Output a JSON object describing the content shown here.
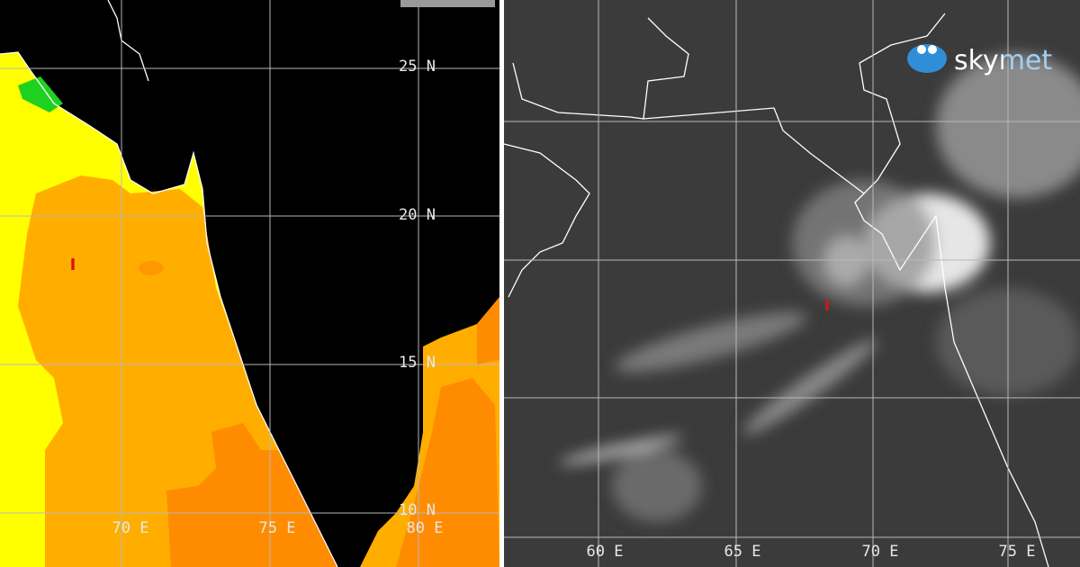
{
  "left_map": {
    "lat_labels": [
      "25 N",
      "20 N",
      "15 N",
      "10 N"
    ],
    "lon_labels": [
      "70 E",
      "75 E",
      "80 E"
    ],
    "marker": "I"
  },
  "right_map": {
    "lon_labels": [
      "60 E",
      "65 E",
      "70 E",
      "75 E"
    ],
    "marker": "I"
  },
  "logo": {
    "brand": "skymet"
  }
}
